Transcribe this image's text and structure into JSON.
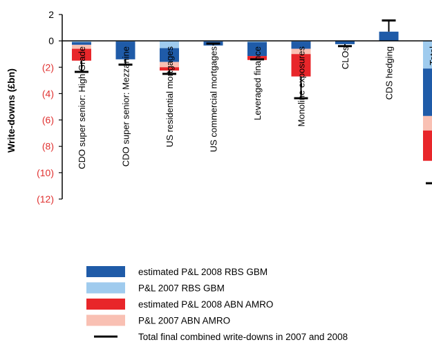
{
  "chart_data": {
    "type": "bar",
    "stacked": true,
    "ylabel": "Write-downs (£bn)",
    "ylim": [
      -12,
      2
    ],
    "ytick_values": [
      2,
      0,
      -2,
      -4,
      -6,
      -8,
      -10,
      -12
    ],
    "ytick_labels": [
      "2",
      "0",
      "(2)",
      "(4)",
      "(6)",
      "(8)",
      "(10)",
      "(12)"
    ],
    "ytick_colors": [
      "#000000",
      "#000000",
      "#e0302f",
      "#e0302f",
      "#e0302f",
      "#e0302f",
      "#e0302f",
      "#e0302f"
    ],
    "categories": [
      "CDO super senior: High Grade",
      "CDO super senior: Mezzanine",
      "US residential mortgages",
      "US commercial mortgages",
      "Leveraged finance",
      "Monoline exposures",
      "CLOs",
      "CDS hedging",
      "Total"
    ],
    "series": [
      {
        "name": "P&L 2007 RBS GBM",
        "color": "#9fcbee",
        "values": [
          -0.1,
          -0.05,
          -0.55,
          -0.05,
          -0.1,
          -0.05,
          0,
          0,
          -2.1
        ]
      },
      {
        "name": "estimated P&L 2008 RBS GBM",
        "color": "#1f5ba8",
        "values": [
          -0.2,
          -1.35,
          -1.05,
          -0.3,
          -1.05,
          -0.55,
          -0.25,
          0.7,
          -3.6
        ]
      },
      {
        "name": "P&L 2007 ABN AMRO",
        "color": "#f9c0b3",
        "values": [
          -0.3,
          0,
          -0.4,
          0,
          0,
          -0.4,
          0,
          0,
          -1.1
        ]
      },
      {
        "name": "estimated P&L 2008 ABN AMRO",
        "color": "#e8262a",
        "values": [
          -0.9,
          0,
          -0.25,
          0,
          -0.3,
          -1.7,
          0,
          0,
          -2.3
        ]
      }
    ],
    "totals_marker": {
      "name": "Total final combined write-downs in 2007 and 2008",
      "color": "#000000",
      "values": [
        -2.35,
        -1.8,
        -2.5,
        -0.2,
        -1.4,
        -4.35,
        -0.4,
        1.55,
        -10.8
      ]
    },
    "legend": {
      "placement": "bottom",
      "entries": [
        {
          "label": "estimated P&L 2008 RBS GBM",
          "color": "#1f5ba8",
          "kind": "bar"
        },
        {
          "label": "P&L 2007 RBS GBM",
          "color": "#9fcbee",
          "kind": "bar"
        },
        {
          "label": "estimated P&L 2008 ABN AMRO",
          "color": "#e8262a",
          "kind": "bar"
        },
        {
          "label": "P&L 2007 ABN AMRO",
          "color": "#f9c0b3",
          "kind": "bar"
        },
        {
          "label": "Total final combined write-downs in 2007 and 2008",
          "color": "#000000",
          "kind": "marker"
        }
      ]
    }
  }
}
